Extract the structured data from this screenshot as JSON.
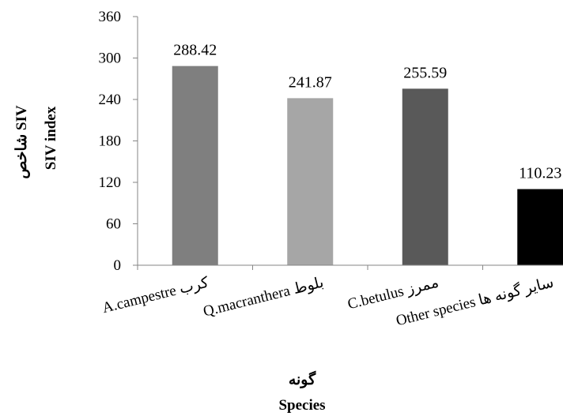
{
  "chart_data": {
    "type": "bar",
    "categories": [
      "A.campestre کرب",
      "Q.macranthera بلوط",
      "C.betulus ممرز",
      "Other species سایر گونه ها"
    ],
    "values": [
      288.42,
      241.87,
      255.59,
      110.23
    ],
    "data_labels": [
      "288.42",
      "241.87",
      "255.59",
      "110.23"
    ],
    "colors": [
      "#7f7f7f",
      "#a6a6a6",
      "#595959",
      "#000000"
    ],
    "ylim": [
      0,
      360
    ],
    "yticks": [
      0,
      60,
      120,
      180,
      240,
      300,
      360
    ],
    "ylabel_fa": "شاخص SIV",
    "ylabel_en": "SIV index",
    "xlabel_fa": "گونه",
    "xlabel_en": "Species",
    "grid": false,
    "legend": "none"
  }
}
